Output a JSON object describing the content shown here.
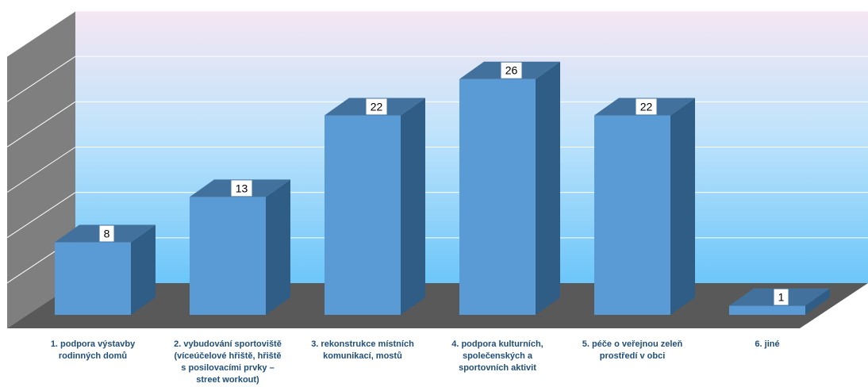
{
  "chart_data": {
    "type": "bar",
    "categories": [
      "1. podpora výstavby\nrodinných domů",
      "2. vybudování sportoviště\n(víceúčelové hřiště, hřiště\ns posilovacími  prvky –\nstreet workout)",
      "3. rekonstrukce místních\nkomunikací, mostů",
      "4. podpora kulturních,\nspolečenských a\nsportovních aktivit",
      "5. péče o veřejnou zeleň\nprostředí v obci",
      "6. jiné"
    ],
    "values": [
      8,
      13,
      22,
      26,
      22,
      1
    ],
    "data_labels": [
      "8",
      "13",
      "22",
      "26",
      "22",
      "1"
    ],
    "ylim": [
      0,
      30
    ],
    "grid": true,
    "legend": "none",
    "three_d": true,
    "colors": {
      "bar_front": "#5b9bd5",
      "bar_top": "#41719c",
      "bar_side": "#2f5d86",
      "floor": "#595959",
      "left_wall": "#7f7f7f",
      "back_wall_top": "#f6e6f3",
      "back_wall_mid": "#bfe3fb",
      "back_wall_bottom": "#6cc6fa",
      "label_text": "#1f4e79"
    }
  }
}
